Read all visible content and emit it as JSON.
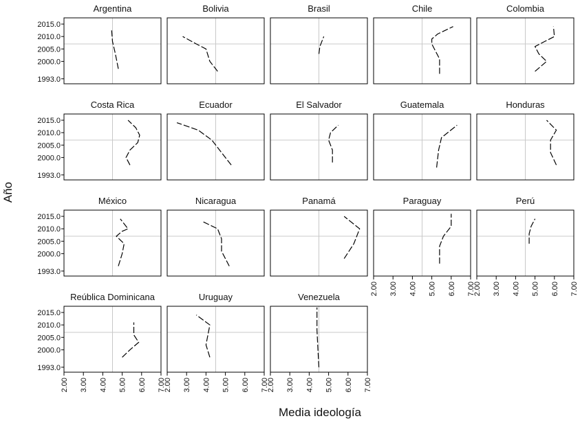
{
  "chart_data": {
    "type": "line",
    "xlabel": "Media ideología",
    "ylabel": "Año",
    "xlim": [
      2,
      7
    ],
    "ylim": [
      1991,
      2017.5
    ],
    "x_ticks": [
      "2.00",
      "3.00",
      "4.00",
      "5.00",
      "6.00",
      "7.00"
    ],
    "y_ticks": [
      "1993.0",
      "2000.0",
      "2005.0",
      "2010.0",
      "2015.0"
    ],
    "reference_x": 4.5,
    "reference_y": 2007,
    "grid": "reference lines only",
    "panels": [
      {
        "name": "Argentina",
        "series": [
          {
            "x": 4.8,
            "y": 1997
          },
          {
            "x": 4.65,
            "y": 2003
          },
          {
            "x": 4.5,
            "y": 2008
          },
          {
            "x": 4.45,
            "y": 2013
          }
        ]
      },
      {
        "name": "Bolivia",
        "series": [
          {
            "x": 4.6,
            "y": 1996
          },
          {
            "x": 4.2,
            "y": 2000
          },
          {
            "x": 4.0,
            "y": 2005
          },
          {
            "x": 3.5,
            "y": 2007
          },
          {
            "x": 2.8,
            "y": 2010
          }
        ]
      },
      {
        "name": "Brasil",
        "series": [
          {
            "x": 4.5,
            "y": 2003
          },
          {
            "x": 4.55,
            "y": 2006
          },
          {
            "x": 4.75,
            "y": 2010
          }
        ]
      },
      {
        "name": "Chile",
        "series": [
          {
            "x": 5.4,
            "y": 1995
          },
          {
            "x": 5.4,
            "y": 2001
          },
          {
            "x": 5.2,
            "y": 2004
          },
          {
            "x": 5.0,
            "y": 2007
          },
          {
            "x": 5.0,
            "y": 2009
          },
          {
            "x": 5.3,
            "y": 2011
          },
          {
            "x": 6.1,
            "y": 2014
          }
        ]
      },
      {
        "name": "Colombia",
        "series": [
          {
            "x": 5.0,
            "y": 1996
          },
          {
            "x": 5.6,
            "y": 2000
          },
          {
            "x": 5.2,
            "y": 2003
          },
          {
            "x": 5.0,
            "y": 2006
          },
          {
            "x": 5.5,
            "y": 2008
          },
          {
            "x": 6.0,
            "y": 2010
          },
          {
            "x": 5.95,
            "y": 2014
          }
        ]
      },
      {
        "name": "Costa Rica",
        "series": [
          {
            "x": 5.4,
            "y": 1997
          },
          {
            "x": 5.2,
            "y": 2000
          },
          {
            "x": 5.4,
            "y": 2003
          },
          {
            "x": 5.8,
            "y": 2006
          },
          {
            "x": 5.9,
            "y": 2009
          },
          {
            "x": 5.7,
            "y": 2012
          },
          {
            "x": 5.3,
            "y": 2015
          }
        ]
      },
      {
        "name": "Ecuador",
        "series": [
          {
            "x": 5.3,
            "y": 1997
          },
          {
            "x": 4.8,
            "y": 2002
          },
          {
            "x": 4.3,
            "y": 2007
          },
          {
            "x": 3.6,
            "y": 2011
          },
          {
            "x": 2.5,
            "y": 2014
          }
        ]
      },
      {
        "name": "El Salvador",
        "series": [
          {
            "x": 5.2,
            "y": 1998
          },
          {
            "x": 5.2,
            "y": 2003
          },
          {
            "x": 5.0,
            "y": 2007
          },
          {
            "x": 5.1,
            "y": 2010
          },
          {
            "x": 5.5,
            "y": 2013
          }
        ]
      },
      {
        "name": "Guatemala",
        "series": [
          {
            "x": 5.25,
            "y": 1996
          },
          {
            "x": 5.35,
            "y": 2003
          },
          {
            "x": 5.5,
            "y": 2008
          },
          {
            "x": 6.3,
            "y": 2013
          }
        ]
      },
      {
        "name": "Honduras",
        "series": [
          {
            "x": 6.1,
            "y": 1997
          },
          {
            "x": 5.8,
            "y": 2002
          },
          {
            "x": 5.8,
            "y": 2007
          },
          {
            "x": 6.1,
            "y": 2011
          },
          {
            "x": 5.6,
            "y": 2015
          }
        ]
      },
      {
        "name": "México",
        "series": [
          {
            "x": 4.8,
            "y": 1995
          },
          {
            "x": 5.0,
            "y": 2000
          },
          {
            "x": 5.1,
            "y": 2004
          },
          {
            "x": 4.7,
            "y": 2007
          },
          {
            "x": 5.0,
            "y": 2009
          },
          {
            "x": 5.3,
            "y": 2010
          },
          {
            "x": 4.9,
            "y": 2014
          }
        ]
      },
      {
        "name": "Nicaragua",
        "series": [
          {
            "x": 5.2,
            "y": 1995
          },
          {
            "x": 4.8,
            "y": 2001
          },
          {
            "x": 4.8,
            "y": 2006
          },
          {
            "x": 4.6,
            "y": 2010
          },
          {
            "x": 3.8,
            "y": 2013
          }
        ]
      },
      {
        "name": "Panamá",
        "series": [
          {
            "x": 5.8,
            "y": 1998
          },
          {
            "x": 6.3,
            "y": 2004
          },
          {
            "x": 6.6,
            "y": 2010
          },
          {
            "x": 5.8,
            "y": 2015
          }
        ]
      },
      {
        "name": "Paraguay",
        "series": [
          {
            "x": 5.4,
            "y": 1996
          },
          {
            "x": 5.4,
            "y": 2003
          },
          {
            "x": 5.6,
            "y": 2007
          },
          {
            "x": 6.0,
            "y": 2011
          },
          {
            "x": 6.0,
            "y": 2016
          }
        ]
      },
      {
        "name": "Perú",
        "series": [
          {
            "x": 4.7,
            "y": 2004
          },
          {
            "x": 4.7,
            "y": 2008
          },
          {
            "x": 4.8,
            "y": 2011
          },
          {
            "x": 5.0,
            "y": 2014
          }
        ]
      },
      {
        "name": "Reública Dominicana",
        "series": [
          {
            "x": 5.0,
            "y": 1997
          },
          {
            "x": 5.4,
            "y": 2000
          },
          {
            "x": 5.85,
            "y": 2003
          },
          {
            "x": 5.6,
            "y": 2006
          },
          {
            "x": 5.6,
            "y": 2011
          }
        ]
      },
      {
        "name": "Uruguay",
        "series": [
          {
            "x": 4.2,
            "y": 1997
          },
          {
            "x": 4.0,
            "y": 2002
          },
          {
            "x": 4.1,
            "y": 2006
          },
          {
            "x": 4.2,
            "y": 2010
          },
          {
            "x": 3.5,
            "y": 2014
          }
        ]
      },
      {
        "name": "Venezuela",
        "series": [
          {
            "x": 4.5,
            "y": 1993
          },
          {
            "x": 4.45,
            "y": 2000
          },
          {
            "x": 4.4,
            "y": 2008
          },
          {
            "x": 4.4,
            "y": 2017
          }
        ]
      }
    ]
  }
}
